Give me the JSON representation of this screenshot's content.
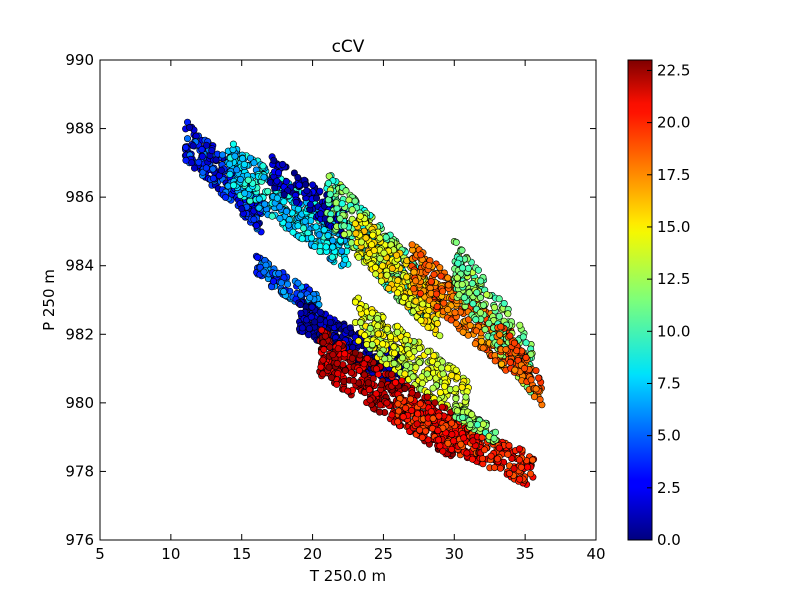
{
  "chart_data": {
    "type": "scatter",
    "title": "cCV",
    "xlabel": "T 250.0 m",
    "ylabel": "P 250 m",
    "xlim": [
      5,
      40
    ],
    "ylim": [
      976,
      990
    ],
    "x_ticks": [
      5,
      10,
      15,
      20,
      25,
      30,
      35,
      40
    ],
    "y_ticks": [
      976,
      978,
      980,
      982,
      984,
      986,
      988,
      990
    ],
    "grid": false,
    "legend": "none",
    "marker": "circle, black edge",
    "colormap": "jet",
    "colorbar": {
      "range": [
        0.0,
        23.0
      ],
      "ticks": [
        "0.0",
        "2.5",
        "5.0",
        "7.5",
        "10.0",
        "12.5",
        "15.0",
        "17.5",
        "20.0",
        "22.5"
      ]
    },
    "point_clusters": [
      {
        "color_value_range": [
          1,
          6
        ],
        "x_range": [
          11.0,
          16.5
        ],
        "y_range": [
          985.5,
          987.7
        ],
        "approx_points": 260
      },
      {
        "color_value_range": [
          6,
          10
        ],
        "x_range": [
          14.0,
          22.5
        ],
        "y_range": [
          984.5,
          987.0
        ],
        "approx_points": 380
      },
      {
        "color_value_range": [
          0,
          3
        ],
        "x_range": [
          17.0,
          22.5
        ],
        "y_range": [
          985.2,
          986.8
        ],
        "approx_points": 120
      },
      {
        "color_value_range": [
          9,
          13
        ],
        "x_range": [
          21.0,
          28.0
        ],
        "y_range": [
          983.0,
          986.0
        ],
        "approx_points": 320
      },
      {
        "color_value_range": [
          13,
          16
        ],
        "x_range": [
          23.0,
          29.0
        ],
        "y_range": [
          982.5,
          985.0
        ],
        "approx_points": 250
      },
      {
        "color_value_range": [
          16,
          19
        ],
        "x_range": [
          27.0,
          34.0
        ],
        "y_range": [
          981.5,
          984.0
        ],
        "approx_points": 300
      },
      {
        "color_value_range": [
          10,
          13
        ],
        "x_range": [
          30.0,
          35.5
        ],
        "y_range": [
          981.0,
          984.0
        ],
        "approx_points": 230
      },
      {
        "color_value_range": [
          17,
          19
        ],
        "x_range": [
          33.0,
          36.2
        ],
        "y_range": [
          980.3,
          982.0
        ],
        "approx_points": 90
      },
      {
        "color_value_range": [
          3,
          7
        ],
        "x_range": [
          16.0,
          20.5
        ],
        "y_range": [
          982.8,
          984.0
        ],
        "approx_points": 120
      },
      {
        "color_value_range": [
          0,
          2.5
        ],
        "x_range": [
          19.0,
          26.5
        ],
        "y_range": [
          980.8,
          982.6
        ],
        "approx_points": 300
      },
      {
        "color_value_range": [
          12,
          15
        ],
        "x_range": [
          23.0,
          31.0
        ],
        "y_range": [
          980.0,
          982.5
        ],
        "approx_points": 300
      },
      {
        "color_value_range": [
          20,
          23
        ],
        "x_range": [
          20.5,
          30.0
        ],
        "y_range": [
          979.0,
          981.5
        ],
        "approx_points": 380
      },
      {
        "color_value_range": [
          18,
          21
        ],
        "x_range": [
          26.0,
          35.6
        ],
        "y_range": [
          978.0,
          979.8
        ],
        "approx_points": 320
      },
      {
        "color_value_range": [
          10,
          13
        ],
        "x_range": [
          30.0,
          33.0
        ],
        "y_range": [
          979.0,
          979.8
        ],
        "approx_points": 70
      }
    ]
  }
}
